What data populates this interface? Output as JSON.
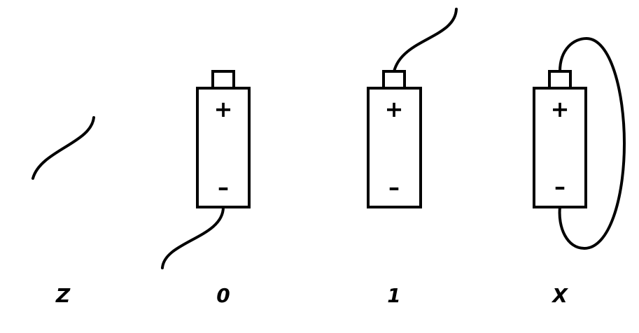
{
  "diagram": {
    "panels": [
      {
        "label": "Z",
        "state": "floating wire, no battery"
      },
      {
        "label": "0",
        "state": "wire connected to negative terminal",
        "plus": "+",
        "minus": "–"
      },
      {
        "label": "1",
        "state": "wire connected to positive terminal",
        "plus": "+",
        "minus": "–"
      },
      {
        "label": "X",
        "state": "wire loops from positive to negative terminal",
        "plus": "+",
        "minus": "–"
      }
    ],
    "colors": {
      "stroke": "#000000",
      "background": "#ffffff"
    }
  }
}
